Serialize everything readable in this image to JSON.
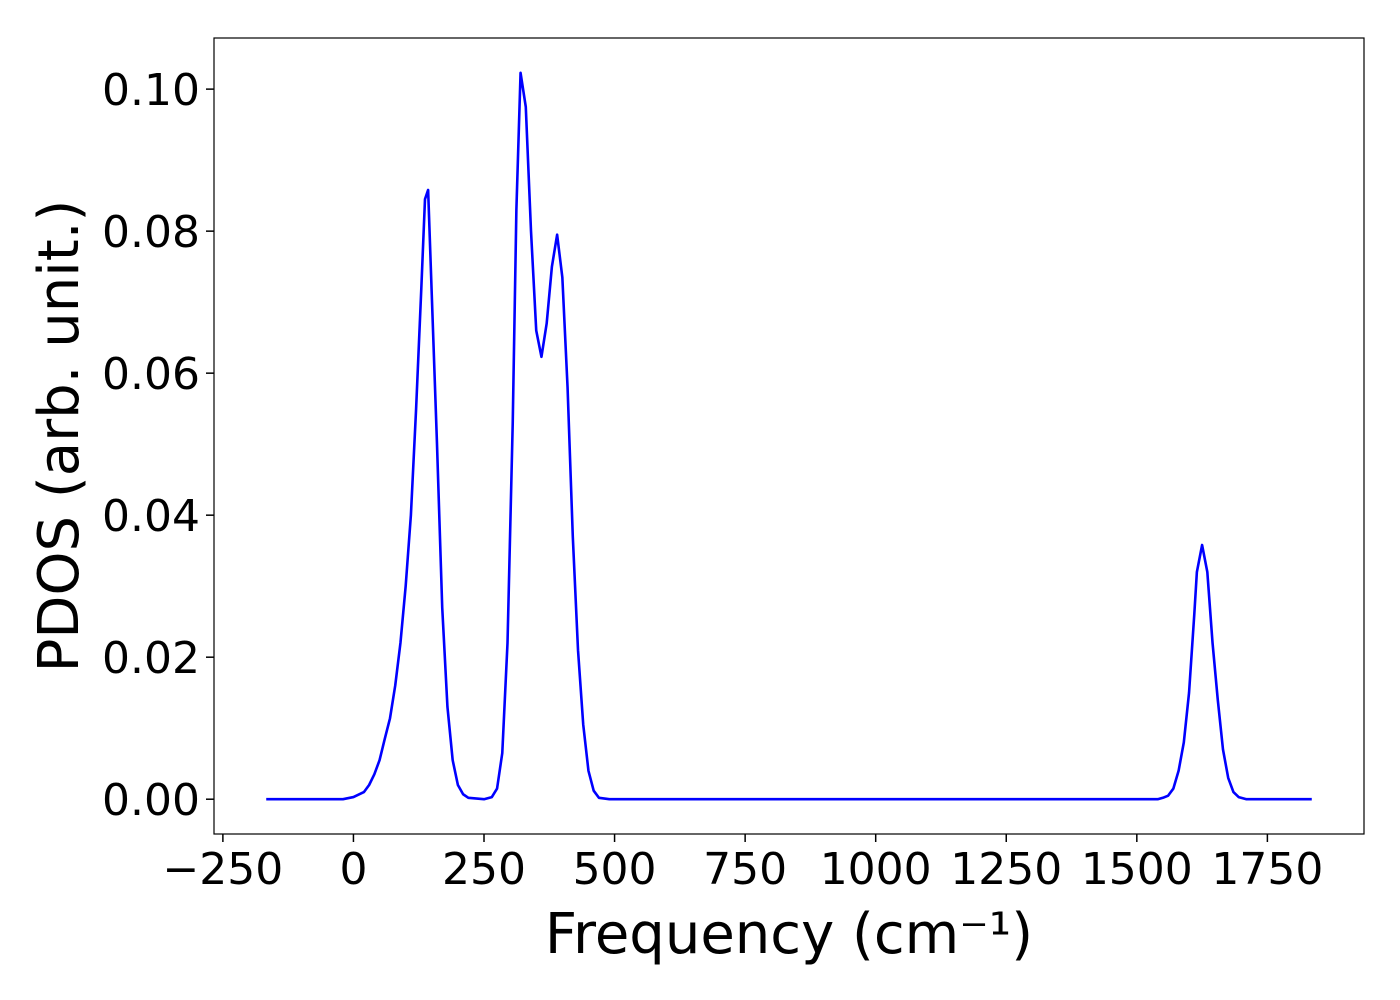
{
  "chart_data": {
    "type": "line",
    "xlabel": "Frequency (cm⁻¹)",
    "ylabel": "PDOS (arb. unit.)",
    "x": [
      -167,
      -50,
      -20,
      0,
      20,
      30,
      40,
      50,
      60,
      70,
      80,
      90,
      100,
      110,
      120,
      130,
      137,
      143,
      150,
      160,
      170,
      180,
      190,
      200,
      210,
      220,
      250,
      265,
      275,
      285,
      295,
      305,
      312,
      320,
      330,
      340,
      350,
      360,
      370,
      380,
      390,
      400,
      410,
      420,
      430,
      440,
      450,
      460,
      470,
      490,
      1540,
      1550,
      1560,
      1570,
      1580,
      1590,
      1600,
      1610,
      1615,
      1625,
      1635,
      1645,
      1655,
      1665,
      1675,
      1685,
      1695,
      1710,
      1835
    ],
    "series": [
      {
        "color": "#0000ff",
        "values": [
          0,
          0,
          0,
          0.0003,
          0.001,
          0.002,
          0.0035,
          0.0055,
          0.0085,
          0.0114,
          0.016,
          0.022,
          0.03,
          0.04,
          0.055,
          0.072,
          0.0845,
          0.0858,
          0.071,
          0.05,
          0.027,
          0.013,
          0.0055,
          0.002,
          0.0007,
          0.0002,
          0,
          0.0003,
          0.0015,
          0.0065,
          0.022,
          0.053,
          0.083,
          0.1023,
          0.0975,
          0.08,
          0.066,
          0.0623,
          0.067,
          0.075,
          0.0795,
          0.0735,
          0.058,
          0.037,
          0.021,
          0.0105,
          0.004,
          0.0012,
          0.0002,
          0,
          0,
          0.0002,
          0.0005,
          0.0015,
          0.004,
          0.008,
          0.015,
          0.026,
          0.032,
          0.0358,
          0.032,
          0.022,
          0.014,
          0.007,
          0.003,
          0.001,
          0.0003,
          0,
          0
        ]
      }
    ],
    "xlim": [
      -267,
      1935
    ],
    "ylim": [
      -0.0049,
      0.1072
    ],
    "xticks": [
      {
        "value": -250,
        "label": "−250"
      },
      0,
      250,
      500,
      750,
      1000,
      1250,
      1500,
      1750
    ],
    "yticks": [
      {
        "value": 0,
        "label": "0.00"
      },
      {
        "value": 0.02,
        "label": "0.02"
      },
      {
        "value": 0.04,
        "label": "0.04"
      },
      {
        "value": 0.06,
        "label": "0.06"
      },
      {
        "value": 0.08,
        "label": "0.08"
      },
      {
        "value": 0.1,
        "label": "0.10"
      }
    ],
    "grid": false
  }
}
